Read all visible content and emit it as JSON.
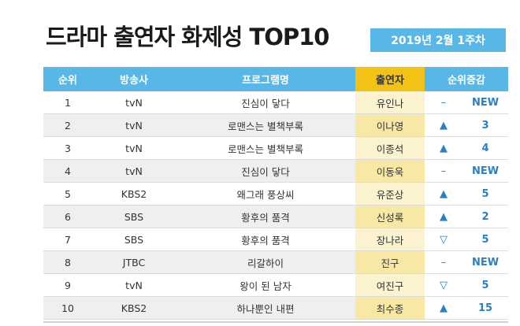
{
  "title": "드라마 출연자 화제성 TOP10",
  "date_badge": "2019년 2월 1주차",
  "columns": {
    "rank": "순위",
    "channel": "방송사",
    "program": "프로그램명",
    "cast": "출연자",
    "change": "순위증감"
  },
  "rows": [
    {
      "rank": "1",
      "channel": "tvN",
      "program": "진심이 닿다",
      "cast": "유인나",
      "change_symbol": "–",
      "change_value": "NEW"
    },
    {
      "rank": "2",
      "channel": "tvN",
      "program": "로맨스는 별책부록",
      "cast": "이나영",
      "change_symbol": "▲",
      "change_value": "3"
    },
    {
      "rank": "3",
      "channel": "tvN",
      "program": "로맨스는 별책부록",
      "cast": "이종석",
      "change_symbol": "▲",
      "change_value": "4"
    },
    {
      "rank": "4",
      "channel": "tvN",
      "program": "진심이 닿다",
      "cast": "이동욱",
      "change_symbol": "–",
      "change_value": "NEW"
    },
    {
      "rank": "5",
      "channel": "KBS2",
      "program": "왜그래 풍상씨",
      "cast": "유준상",
      "change_symbol": "▲",
      "change_value": "5"
    },
    {
      "rank": "6",
      "channel": "SBS",
      "program": "황후의 품격",
      "cast": "신성록",
      "change_symbol": "▲",
      "change_value": "2"
    },
    {
      "rank": "7",
      "channel": "SBS",
      "program": "황후의 품격",
      "cast": "장나라",
      "change_symbol": "▽",
      "change_value": "5"
    },
    {
      "rank": "8",
      "channel": "JTBC",
      "program": "리갈하이",
      "cast": "진구",
      "change_symbol": "–",
      "change_value": "NEW"
    },
    {
      "rank": "9",
      "channel": "tvN",
      "program": "왕이 된 남자",
      "cast": "여진구",
      "change_symbol": "▽",
      "change_value": "5"
    },
    {
      "rank": "10",
      "channel": "KBS2",
      "program": "하나뿐인 내편",
      "cast": "최수종",
      "change_symbol": "▲",
      "change_value": "15"
    }
  ],
  "colors": {
    "header_blue": "#58b7e6",
    "header_yellow": "#f2c316",
    "change_blue": "#2b7fc4"
  }
}
